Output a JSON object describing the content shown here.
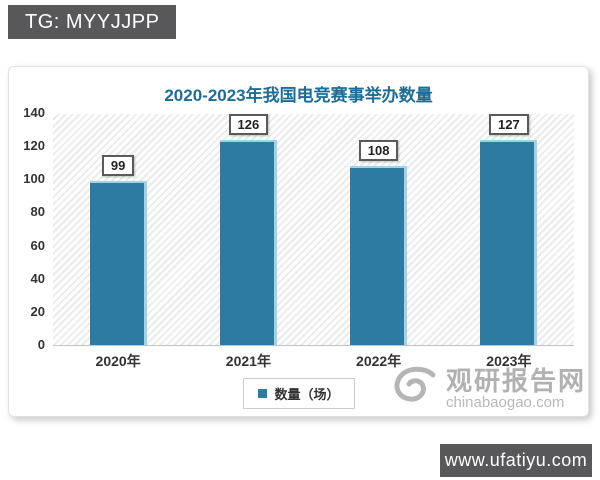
{
  "top_banner": {
    "text": "TG: MYYJJPP",
    "background": "#58585a"
  },
  "bottom_banner": {
    "text": "www.ufatiyu.com",
    "background": "#58585a"
  },
  "watermark": {
    "logo": "swirl-icon",
    "name": "观研报告网",
    "domain": "chinabaogao.com",
    "color": "#b1b1b1"
  },
  "chart_data": {
    "type": "bar",
    "title": "2020-2023年我国电竞赛事举办数量",
    "categories": [
      "2020年",
      "2021年",
      "2022年",
      "2023年"
    ],
    "values": [
      99,
      126,
      108,
      127
    ],
    "series_name": "数量（场）",
    "xlabel": "",
    "ylabel": "",
    "ylim": [
      0,
      140
    ],
    "yticks": [
      0,
      20,
      40,
      60,
      80,
      100,
      120,
      140
    ],
    "grid": false,
    "legend_position": "bottom",
    "plot_background": "diagonal-hatch",
    "bar_color": "#2d7ba0",
    "bar_edge_color": "#a5d2e2",
    "title_color": "#1d6e96"
  }
}
